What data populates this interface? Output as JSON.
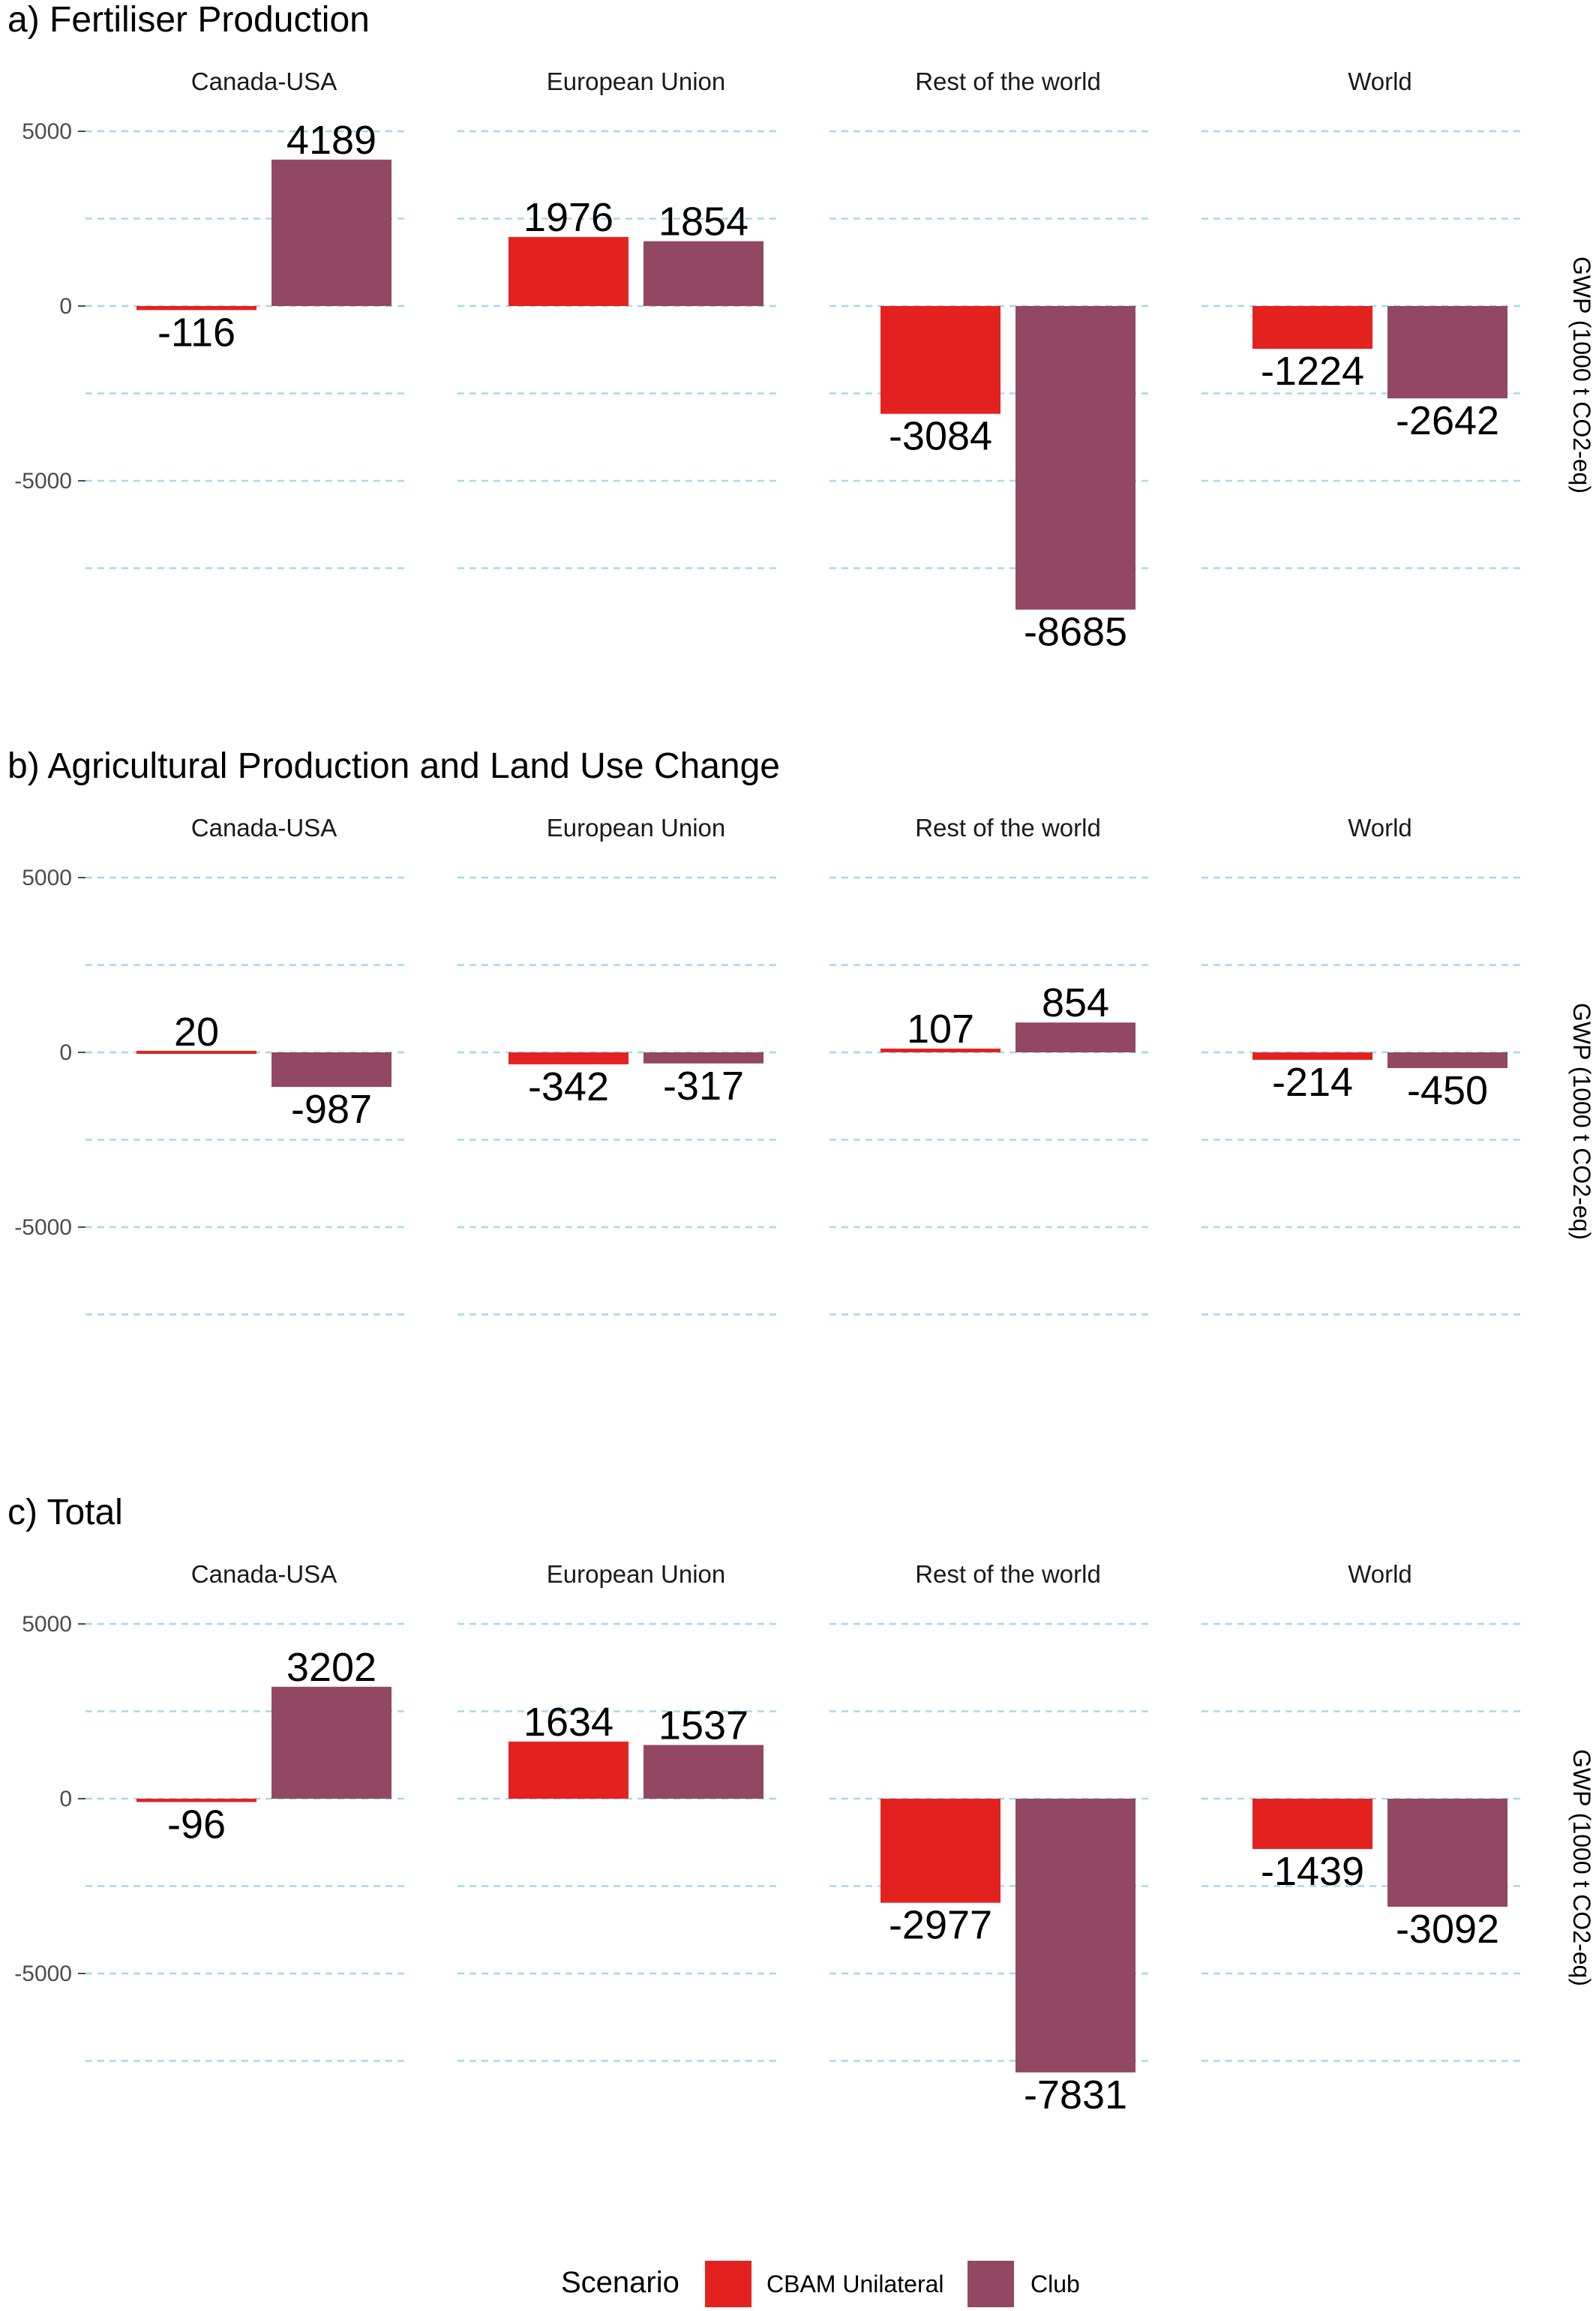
{
  "chart_data": [
    {
      "type": "bar",
      "title": "a) Fertiliser Production",
      "ylabel": "GWP (1000 t CO2-eq)",
      "facets": [
        "Canada-USA",
        "European Union",
        "Rest of the world",
        "World"
      ],
      "yticks": [
        5000,
        0,
        -5000
      ],
      "ylim": [
        -10000,
        5000
      ],
      "grid": true,
      "series": [
        {
          "name": "CBAM Unilateral",
          "values": [
            -116,
            1976,
            -3084,
            -1224
          ]
        },
        {
          "name": "Club",
          "values": [
            4189,
            1854,
            -8685,
            -2642
          ]
        }
      ]
    },
    {
      "type": "bar",
      "title": "b) Agricultural Production and Land Use Change",
      "ylabel": "GWP (1000 t CO2-eq)",
      "facets": [
        "Canada-USA",
        "European Union",
        "Rest of the world",
        "World"
      ],
      "yticks": [
        5000,
        0,
        -5000
      ],
      "ylim": [
        -10000,
        5000
      ],
      "grid": true,
      "series": [
        {
          "name": "CBAM Unilateral",
          "values": [
            20,
            -342,
            107,
            -214
          ]
        },
        {
          "name": "Club",
          "values": [
            -987,
            -317,
            854,
            -450
          ]
        }
      ]
    },
    {
      "type": "bar",
      "title": "c) Total",
      "ylabel": "GWP (1000 t CO2-eq)",
      "facets": [
        "Canada-USA",
        "European Union",
        "Rest of the world",
        "World"
      ],
      "yticks": [
        5000,
        0,
        -5000
      ],
      "ylim": [
        -10000,
        5000
      ],
      "grid": true,
      "series": [
        {
          "name": "CBAM Unilateral",
          "values": [
            -96,
            1634,
            -2977,
            -1439
          ]
        },
        {
          "name": "Club",
          "values": [
            3202,
            1537,
            -7831,
            -3092
          ]
        }
      ]
    }
  ],
  "legend": {
    "title": "Scenario",
    "position": "bottom",
    "items": [
      {
        "label": "CBAM Unilateral",
        "color": "#e32220"
      },
      {
        "label": "Club",
        "color": "#924862"
      }
    ]
  },
  "colors": {
    "cbam": "#e32220",
    "club": "#924862",
    "grid": "#a8d8ea",
    "tick": "#4d4d4d"
  }
}
